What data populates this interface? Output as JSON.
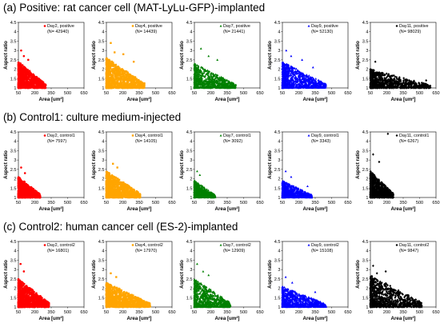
{
  "sections": [
    {
      "title": "(a)  Positive: rat cancer cell (MAT-LyLu-GFP)-implanted"
    },
    {
      "title": "(b)  Control1: culture medium-injected"
    },
    {
      "title": "(c)  Control2: human cancer cell (ES-2)-implanted"
    }
  ],
  "axis_text": {
    "ylabel": "Aspect ratio",
    "xlabel": "Area [um²]"
  },
  "chart_data": [
    {
      "type": "scatter",
      "group": "positive",
      "day": "Day2",
      "legend": "Day2, positive",
      "n_label": "(N= 42940)",
      "color": "#ff0000",
      "marker": "circle",
      "xlabel": "Area [um²]",
      "ylabel": "Aspect ratio",
      "xlim": [
        50,
        650
      ],
      "ylim": [
        1,
        4.5
      ],
      "x_ticks": [
        "50",
        "200",
        "350",
        "500",
        "650"
      ],
      "y_ticks": [
        "1",
        "1.5",
        "2",
        "2.5",
        "3",
        "3.5",
        "4",
        "4.5"
      ],
      "cloud": {
        "x_max": 300,
        "y_max": 2.4,
        "outliers": [
          [
            75,
            3.0
          ],
          [
            100,
            2.7
          ],
          [
            140,
            2.5
          ]
        ]
      }
    },
    {
      "type": "scatter",
      "group": "positive",
      "day": "Day4",
      "legend": "Day4, positive",
      "n_label": "(N= 14439)",
      "color": "#ffa500",
      "marker": "square",
      "xlabel": "Area [um²]",
      "ylabel": "Aspect ratio",
      "xlim": [
        50,
        650
      ],
      "ylim": [
        1,
        4.5
      ],
      "x_ticks": [
        "50",
        "200",
        "350",
        "500",
        "650"
      ],
      "y_ticks": [
        "1",
        "1.5",
        "2",
        "2.5",
        "3",
        "3.5",
        "4",
        "4.5"
      ],
      "cloud": {
        "x_max": 400,
        "y_max": 2.6,
        "outliers": [
          [
            90,
            3.4
          ],
          [
            125,
            2.9
          ],
          [
            205,
            2.8
          ],
          [
            300,
            2.4
          ]
        ]
      }
    },
    {
      "type": "scatter",
      "group": "positive",
      "day": "Day7",
      "legend": "Day7, positive",
      "n_label": "(N= 21441)",
      "color": "#008000",
      "marker": "triangle",
      "xlabel": "Area [um²]",
      "ylabel": "Aspect ratio",
      "xlim": [
        50,
        650
      ],
      "ylim": [
        1,
        4.5
      ],
      "x_ticks": [
        "50",
        "200",
        "350",
        "500",
        "650"
      ],
      "y_ticks": [
        "1",
        "1.5",
        "2",
        "2.5",
        "3",
        "3.5",
        "4",
        "4.5"
      ],
      "cloud": {
        "x_max": 430,
        "y_max": 2.3,
        "outliers": [
          [
            110,
            3.1
          ],
          [
            180,
            2.7
          ],
          [
            260,
            2.5
          ]
        ]
      }
    },
    {
      "type": "scatter",
      "group": "positive",
      "day": "Day9",
      "legend": "Day9, positive",
      "n_label": "(N= 52130)",
      "color": "#0000ff",
      "marker": "triangle",
      "xlabel": "Area [um²]",
      "ylabel": "Aspect ratio",
      "xlim": [
        50,
        650
      ],
      "ylim": [
        1,
        4.5
      ],
      "x_ticks": [
        "50",
        "200",
        "350",
        "500",
        "650"
      ],
      "y_ticks": [
        "1",
        "1.5",
        "2",
        "2.5",
        "3",
        "3.5",
        "4",
        "4.5"
      ],
      "cloud": {
        "x_max": 450,
        "y_max": 2.4,
        "outliers": [
          [
            85,
            3.0
          ],
          [
            130,
            2.7
          ],
          [
            230,
            2.5
          ],
          [
            330,
            2.1
          ]
        ]
      }
    },
    {
      "type": "scatter",
      "group": "positive",
      "day": "Day11",
      "legend": "Day11, positive",
      "n_label": "(N= 98029)",
      "color": "#000000",
      "marker": "diamond",
      "xlabel": "Area [um²]",
      "ylabel": "Aspect ratio",
      "xlim": [
        50,
        650
      ],
      "ylim": [
        1,
        4.5
      ],
      "x_ticks": [
        "50",
        "200",
        "350",
        "500",
        "650"
      ],
      "y_ticks": [
        "1",
        "1.5",
        "2",
        "2.5",
        "3",
        "3.5",
        "4",
        "4.5"
      ],
      "cloud": {
        "x_max": 600,
        "y_max": 2.0,
        "outliers": [
          [
            95,
            2.4
          ],
          [
            560,
            1.4
          ]
        ]
      }
    },
    {
      "type": "scatter",
      "group": "control1",
      "day": "Day2",
      "legend": "Day2, control1",
      "n_label": "(N= 7597)",
      "color": "#ff0000",
      "marker": "circle",
      "xlabel": "Area [um²]",
      "ylabel": "Aspect ratio",
      "xlim": [
        50,
        650
      ],
      "ylim": [
        1,
        4.5
      ],
      "x_ticks": [
        "50",
        "200",
        "350",
        "500",
        "650"
      ],
      "y_ticks": [
        "1",
        "1.5",
        "2",
        "2.5",
        "3",
        "3.5",
        "4",
        "4.5"
      ],
      "cloud": {
        "x_max": 250,
        "y_max": 2.1,
        "outliers": [
          [
            75,
            2.6
          ],
          [
            110,
            2.3
          ]
        ]
      }
    },
    {
      "type": "scatter",
      "group": "control1",
      "day": "Day4",
      "legend": "Day4, control1",
      "n_label": "(N= 14105)",
      "color": "#ffa500",
      "marker": "square",
      "xlabel": "Area [um²]",
      "ylabel": "Aspect ratio",
      "xlim": [
        50,
        650
      ],
      "ylim": [
        1,
        4.5
      ],
      "x_ticks": [
        "50",
        "200",
        "350",
        "500",
        "650"
      ],
      "y_ticks": [
        "1",
        "1.5",
        "2",
        "2.5",
        "3",
        "3.5",
        "4",
        "4.5"
      ],
      "cloud": {
        "x_max": 360,
        "y_max": 2.4,
        "outliers": [
          [
            110,
            2.8
          ],
          [
            150,
            2.6
          ]
        ]
      }
    },
    {
      "type": "scatter",
      "group": "control1",
      "day": "Day7",
      "legend": "Day7, control1",
      "n_label": "(N= 3092)",
      "color": "#008000",
      "marker": "triangle",
      "xlabel": "Area [um²]",
      "ylabel": "Aspect ratio",
      "xlim": [
        50,
        650
      ],
      "ylim": [
        1,
        4.5
      ],
      "x_ticks": [
        "50",
        "200",
        "350",
        "500",
        "650"
      ],
      "y_ticks": [
        "1",
        "1.5",
        "2",
        "2.5",
        "3",
        "3.5",
        "4",
        "4.5"
      ],
      "cloud": {
        "x_max": 240,
        "y_max": 1.9,
        "outliers": [
          [
            75,
            2.4
          ],
          [
            100,
            2.2
          ]
        ]
      }
    },
    {
      "type": "scatter",
      "group": "control1",
      "day": "Day9",
      "legend": "Day9, control1",
      "n_label": "(N= 3343)",
      "color": "#0000ff",
      "marker": "triangle",
      "xlabel": "Area [um²]",
      "ylabel": "Aspect ratio",
      "xlim": [
        50,
        650
      ],
      "ylim": [
        1,
        4.5
      ],
      "x_ticks": [
        "50",
        "200",
        "350",
        "500",
        "650"
      ],
      "y_ticks": [
        "1",
        "1.5",
        "2",
        "2.5",
        "3",
        "3.5",
        "4",
        "4.5"
      ],
      "cloud": {
        "x_max": 320,
        "y_max": 1.9,
        "outliers": [
          [
            80,
            2.4
          ],
          [
            130,
            2.1
          ],
          [
            280,
            1.6
          ]
        ]
      }
    },
    {
      "type": "scatter",
      "group": "control1",
      "day": "Day11",
      "legend": "Day11, control1",
      "n_label": "(N= 6267)",
      "color": "#000000",
      "marker": "diamond",
      "xlabel": "Area [um²]",
      "ylabel": "Aspect ratio",
      "xlim": [
        50,
        650
      ],
      "ylim": [
        1,
        4.5
      ],
      "x_ticks": [
        "50",
        "200",
        "350",
        "500",
        "650"
      ],
      "y_ticks": [
        "1",
        "1.5",
        "2",
        "2.5",
        "3",
        "3.5",
        "4",
        "4.5"
      ],
      "cloud": {
        "x_max": 260,
        "y_max": 2.4,
        "outliers": [
          [
            75,
            3.3
          ],
          [
            210,
            4.4
          ],
          [
            130,
            2.9
          ]
        ]
      }
    },
    {
      "type": "scatter",
      "group": "control2",
      "day": "Day2",
      "legend": "Day2, control2",
      "n_label": "(N= 16801)",
      "color": "#ff0000",
      "marker": "circle",
      "xlabel": "Area [um²]",
      "ylabel": "Aspect ratio",
      "xlim": [
        50,
        650
      ],
      "ylim": [
        1,
        4.5
      ],
      "x_ticks": [
        "50",
        "200",
        "350",
        "500",
        "650"
      ],
      "y_ticks": [
        "1",
        "1.5",
        "2",
        "2.5",
        "3",
        "3.5",
        "4",
        "4.5"
      ],
      "cloud": {
        "x_max": 330,
        "y_max": 2.5,
        "outliers": [
          [
            70,
            3.3
          ],
          [
            100,
            2.9
          ]
        ]
      }
    },
    {
      "type": "scatter",
      "group": "control2",
      "day": "Day4",
      "legend": "Day4, control2",
      "n_label": "(N= 17970)",
      "color": "#ffa500",
      "marker": "square",
      "xlabel": "Area [um²]",
      "ylabel": "Aspect ratio",
      "xlim": [
        50,
        650
      ],
      "ylim": [
        1,
        4.5
      ],
      "x_ticks": [
        "50",
        "200",
        "350",
        "500",
        "650"
      ],
      "y_ticks": [
        "1",
        "1.5",
        "2",
        "2.5",
        "3",
        "3.5",
        "4",
        "4.5"
      ],
      "cloud": {
        "x_max": 450,
        "y_max": 2.3,
        "outliers": [
          [
            90,
            2.8
          ],
          [
            140,
            2.6
          ]
        ]
      }
    },
    {
      "type": "scatter",
      "group": "control2",
      "day": "Day7",
      "legend": "Day7, control2",
      "n_label": "(N= 12909)",
      "color": "#008000",
      "marker": "triangle",
      "xlabel": "Area [um²]",
      "ylabel": "Aspect ratio",
      "xlim": [
        50,
        650
      ],
      "ylim": [
        1,
        4.5
      ],
      "x_ticks": [
        "50",
        "200",
        "350",
        "500",
        "650"
      ],
      "y_ticks": [
        "1",
        "1.5",
        "2",
        "2.5",
        "3",
        "3.5",
        "4",
        "4.5"
      ],
      "cloud": {
        "x_max": 380,
        "y_max": 2.5,
        "outliers": [
          [
            75,
            3.3
          ],
          [
            130,
            2.9
          ],
          [
            180,
            2.7
          ]
        ]
      }
    },
    {
      "type": "scatter",
      "group": "control2",
      "day": "Day9",
      "legend": "Day9, control2",
      "n_label": "(N= 15108)",
      "color": "#0000ff",
      "marker": "triangle",
      "xlabel": "Area [um²]",
      "ylabel": "Aspect ratio",
      "xlim": [
        50,
        650
      ],
      "ylim": [
        1,
        4.5
      ],
      "x_ticks": [
        "50",
        "200",
        "350",
        "500",
        "650"
      ],
      "y_ticks": [
        "1",
        "1.5",
        "2",
        "2.5",
        "3",
        "3.5",
        "4",
        "4.5"
      ],
      "cloud": {
        "x_max": 450,
        "y_max": 2.1,
        "outliers": [
          [
            80,
            2.6
          ],
          [
            140,
            2.3
          ],
          [
            350,
            1.8
          ]
        ]
      }
    },
    {
      "type": "scatter",
      "group": "control2",
      "day": "Day11",
      "legend": "Day11, control2",
      "n_label": "(N= 9847)",
      "color": "#000000",
      "marker": "diamond",
      "xlabel": "Area [um²]",
      "ylabel": "Aspect ratio",
      "xlim": [
        50,
        650
      ],
      "ylim": [
        1,
        4.5
      ],
      "x_ticks": [
        "50",
        "200",
        "350",
        "500",
        "650"
      ],
      "y_ticks": [
        "1",
        "1.5",
        "2",
        "2.5",
        "3",
        "3.5",
        "4",
        "4.5"
      ],
      "cloud": {
        "x_max": 520,
        "y_max": 2.7,
        "outliers": [
          [
            75,
            3.2
          ],
          [
            110,
            2.8
          ],
          [
            190,
            2.9
          ]
        ]
      }
    }
  ]
}
